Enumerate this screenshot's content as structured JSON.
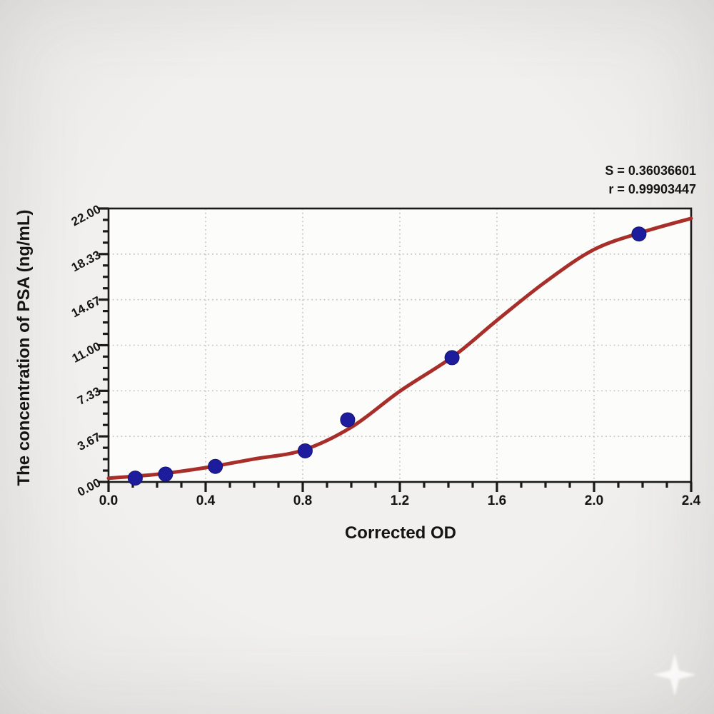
{
  "chart_data": {
    "type": "scatter",
    "title": "",
    "xlabel": "Corrected OD",
    "ylabel": "The concentration of PSA (ng/mL)",
    "xlim": [
      0,
      2.4
    ],
    "ylim": [
      0,
      22
    ],
    "grid": "dotted",
    "legend_position": "none",
    "x_major_ticks": [
      0,
      0.4,
      0.8,
      1.2,
      1.6,
      2.0,
      2.4
    ],
    "x_tick_labels": [
      "0.0",
      "0.4",
      "0.8",
      "1.2",
      "1.6",
      "2.0",
      "2.4"
    ],
    "x_minor_step": 0.1,
    "y_major_ticks": [
      0,
      3.6667,
      7.3333,
      11,
      14.6667,
      18.3333,
      22
    ],
    "y_tick_labels": [
      "0.00",
      "3.67",
      "7.33",
      "11.00",
      "14.67",
      "18.33",
      "22.00"
    ],
    "y_minor_divisions": 4,
    "annotation": {
      "s_label": "S = 0.36036601",
      "r_label": "r = 0.99903447"
    },
    "series": [
      {
        "name": "standard-points",
        "type": "scatter",
        "x": [
          0.11,
          0.235,
          0.44,
          0.81,
          0.985,
          1.415,
          2.185
        ],
        "y": [
          0.31,
          0.63,
          1.25,
          2.5,
          5.0,
          10.0,
          19.95
        ]
      },
      {
        "name": "fitted-curve",
        "type": "line",
        "x": [
          0,
          0.2,
          0.4,
          0.6,
          0.8,
          1.0,
          1.2,
          1.42,
          1.6,
          1.8,
          2.0,
          2.2,
          2.4
        ],
        "y": [
          0.3,
          0.62,
          1.15,
          1.85,
          2.55,
          4.4,
          7.3,
          10.1,
          13.0,
          16.1,
          18.7,
          20.1,
          21.2
        ]
      }
    ],
    "colors": {
      "curve": "#a82e2a",
      "point": "#1d1c9c",
      "grid": "#c3c3c3",
      "frame": "#1a1a1a",
      "text": "#141414",
      "plot_bg": "#fcfcfb",
      "page_bg": "#eeedeb"
    }
  },
  "watermark": {
    "icon": "sparkle"
  }
}
